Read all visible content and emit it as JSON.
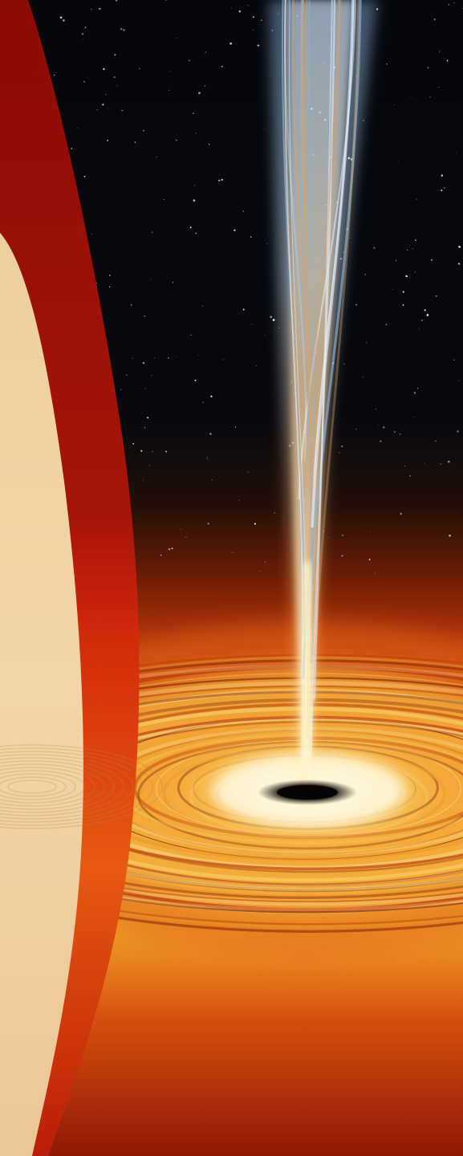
{
  "scene": {
    "colors": {
      "space": "#05070c",
      "disk_hot": "#fff3c4",
      "disk_mid": "#f5a623",
      "disk_outer": "#d9460f",
      "disk_edge": "#8a1606",
      "jet_upper": "#9fc2dd",
      "jet_core": "#ffd27a",
      "hole": "#0a0808",
      "panel_red": "#9e0f08",
      "panel_cream": "#f0d2a4"
    },
    "elements": [
      "starfield",
      "relativistic-jet",
      "accretion-disk",
      "black-hole",
      "curved-side-panel"
    ]
  }
}
